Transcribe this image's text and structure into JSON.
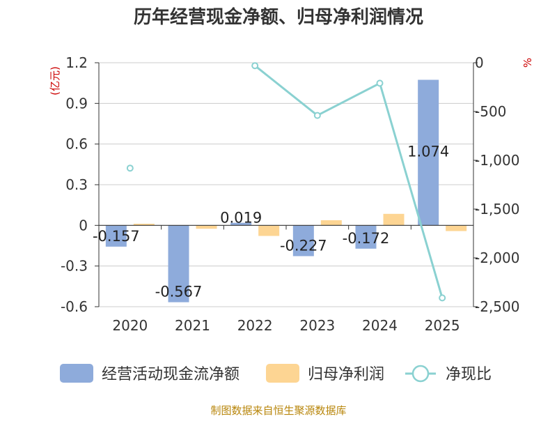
{
  "chart_data": {
    "type": "bar",
    "title": "历年经营现金净额、归母净利润情况",
    "categories": [
      "2020",
      "2021",
      "2022",
      "2023",
      "2024",
      "2025"
    ],
    "left_axis": {
      "unit_label": "(亿元)",
      "ylim": [
        -0.6,
        1.2
      ],
      "ticks": [
        -0.6,
        -0.3,
        0,
        0.3,
        0.6,
        0.9,
        1.2
      ],
      "tick_labels": [
        "-0.6",
        "-0.3",
        "0",
        "0.3",
        "0.6",
        "0.9",
        "1.2"
      ]
    },
    "right_axis": {
      "unit_label": "%",
      "ylim": [
        -2500,
        0
      ],
      "ticks": [
        -2500,
        -2000,
        -1500,
        -1000,
        -500,
        0
      ],
      "tick_labels": [
        "-2,500",
        "-2,000",
        "-1,500",
        "-1,000",
        "-500",
        "0"
      ]
    },
    "series": [
      {
        "name": "经营活动现金流净额",
        "type": "bar",
        "axis": "left",
        "color": "#8eabdb",
        "values": [
          -0.157,
          -0.567,
          0.019,
          -0.227,
          -0.172,
          1.074
        ],
        "labels": [
          "-0.157",
          "-0.567",
          "0.019",
          "-0.227",
          "-0.172",
          "1.074"
        ]
      },
      {
        "name": "归母净利润",
        "type": "bar",
        "axis": "left",
        "color": "#fdd593",
        "values": [
          0.012,
          -0.025,
          -0.078,
          0.038,
          0.085,
          -0.042
        ]
      },
      {
        "name": "净现比",
        "type": "line",
        "axis": "right",
        "color": "#8ad1d1",
        "values": [
          -1080,
          null,
          -30,
          -540,
          -210,
          -2410
        ]
      }
    ],
    "legend_position": "bottom",
    "source_note": "制图数据来自恒生聚源数据库"
  }
}
